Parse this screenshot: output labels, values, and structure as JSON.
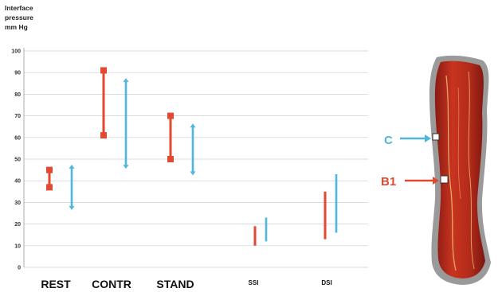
{
  "chart_data": {
    "type": "range-bar",
    "ylabel_lines": [
      "Interface",
      "pressure",
      "mm Hg"
    ],
    "ylim": [
      0,
      100
    ],
    "yticks": [
      0,
      10,
      20,
      30,
      40,
      50,
      60,
      70,
      80,
      90,
      100
    ],
    "categories": [
      "REST",
      "CONTR",
      "STAND",
      "SSI",
      "DSI"
    ],
    "series": [
      {
        "color": "#e04a32",
        "ranges": [
          [
            37,
            45
          ],
          [
            61,
            91
          ],
          [
            50,
            70
          ],
          [
            10,
            19
          ],
          [
            13,
            35
          ]
        ],
        "end_caps": [
          true,
          true,
          true,
          false,
          false
        ]
      },
      {
        "color": "#4fb6e0",
        "ranges": [
          [
            28,
            46
          ],
          [
            47,
            86
          ],
          [
            44,
            65
          ],
          [
            12,
            23
          ],
          [
            16,
            43
          ]
        ],
        "end_caps": [
          true,
          true,
          true,
          false,
          false
        ]
      }
    ],
    "grid": true
  },
  "annotations": {
    "marker_c": {
      "label": "C",
      "color": "#4fb6e0"
    },
    "marker_b1": {
      "label": "B1",
      "color": "#e04a32"
    }
  }
}
